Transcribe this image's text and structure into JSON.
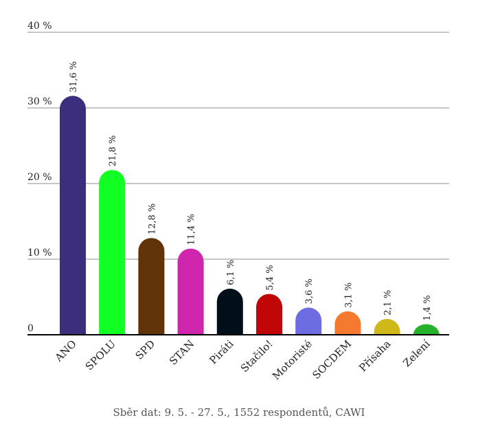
{
  "chart_data": {
    "type": "bar",
    "categories": [
      "ANO",
      "SPOLU",
      "SPD",
      "STAN",
      "Piráti",
      "Stačilo!",
      "Motoristé",
      "SOCDEM",
      "Přísaha",
      "Zelení"
    ],
    "values": [
      31.6,
      21.8,
      12.8,
      11.4,
      6.1,
      5.4,
      3.6,
      3.1,
      2.1,
      1.4
    ],
    "value_labels": [
      "31,6 %",
      "21,8 %",
      "12,8 %",
      "11,4 %",
      "6,1 %",
      "5,4 %",
      "3,6 %",
      "3,1 %",
      "2,1 %",
      "1,4 %"
    ],
    "colors": [
      "#3c2e7c",
      "#11ff22",
      "#603308",
      "#cf26ad",
      "#020f1a",
      "#c00606",
      "#6d6de1",
      "#f57a30",
      "#d1b819",
      "#27b12a"
    ],
    "ylim": [
      0,
      40
    ],
    "yticks": [
      0,
      10,
      20,
      30,
      40
    ],
    "ytick_labels": [
      "0",
      "10 %",
      "20 %",
      "30 %",
      "40 %"
    ],
    "grid": true,
    "title": "",
    "xlabel": "",
    "ylabel": ""
  },
  "footer": {
    "source_text": "Sběr dat: 9. 5. - 27. 5., 1552 respondentů, CAWI"
  }
}
